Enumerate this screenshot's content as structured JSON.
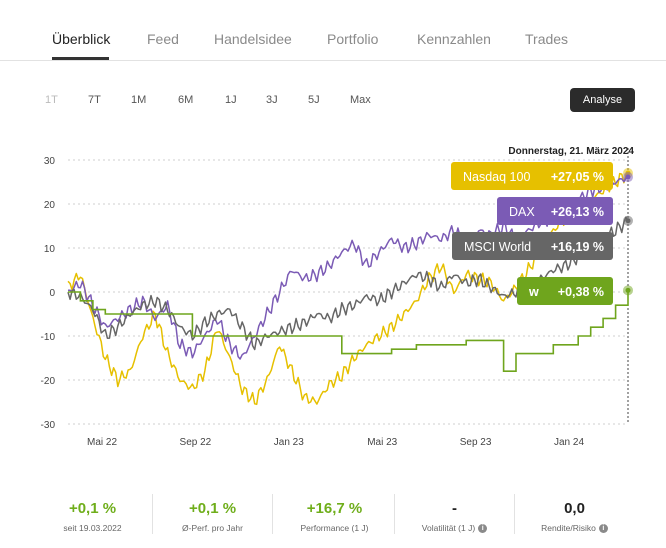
{
  "tabs": [
    "Überblick",
    "Feed",
    "Handelsidee",
    "Portfolio",
    "Kennzahlen",
    "Trades"
  ],
  "ranges": [
    "1T",
    "7T",
    "1M",
    "6M",
    "1J",
    "3J",
    "5J",
    "Max"
  ],
  "analyse_label": "Analyse",
  "date_label": "Donnerstag, 21. März 2024",
  "chart_data": {
    "type": "line",
    "ylim": [
      -30,
      30
    ],
    "yticks": [
      30,
      20,
      10,
      0,
      -10,
      -20,
      -30
    ],
    "xticks": [
      "Mai 22",
      "Sep 22",
      "Jan 23",
      "Mai 23",
      "Sep 23",
      "Jan 24"
    ],
    "grid": true,
    "series": [
      {
        "name": "Nasdaq 100",
        "value_label": "+27,05 %",
        "color": "#e6c000",
        "final": 27.05,
        "values": [
          1,
          4,
          -6,
          -15,
          -20,
          -18,
          -10,
          -5,
          -14,
          -20,
          -22,
          -18,
          -8,
          -15,
          -22,
          -25,
          -20,
          -12,
          -18,
          -24,
          -25,
          -21,
          -19,
          -15,
          -12,
          -10,
          -8,
          -5,
          -2,
          3,
          6,
          0,
          4,
          3,
          2,
          -2,
          1,
          5,
          10,
          14,
          17,
          19,
          21,
          23,
          25,
          27.05
        ]
      },
      {
        "name": "DAX",
        "value_label": "+26,13 %",
        "color": "#7b5bb5",
        "final": 26.13,
        "values": [
          0,
          2,
          -3,
          -8,
          -6,
          -4,
          -2,
          -6,
          -3,
          -12,
          -14,
          -10,
          -6,
          -12,
          -15,
          -10,
          -5,
          0,
          5,
          3,
          4,
          6,
          9,
          11,
          6,
          9,
          12,
          10,
          11,
          13,
          12,
          14,
          11,
          14,
          13,
          15,
          12,
          14,
          16,
          17,
          19,
          21,
          23,
          24,
          25,
          26.13
        ]
      },
      {
        "name": "MSCI World",
        "value_label": "+16,19 %",
        "color": "#666666",
        "final": 16.19,
        "values": [
          0,
          -1,
          -4,
          -10,
          -8,
          -5,
          -3,
          -2,
          -4,
          -8,
          -10,
          -7,
          -5,
          -4,
          -8,
          -12,
          -10,
          -9,
          -8,
          -7,
          -5,
          -6,
          -4,
          -3,
          -1,
          -2,
          0,
          2,
          4,
          3,
          1,
          4,
          2,
          3,
          1,
          -1,
          0,
          1,
          3,
          5,
          6,
          8,
          10,
          12,
          14,
          16.19
        ]
      },
      {
        "name": "w",
        "value_label": "+0,38 %",
        "color": "#6fa51d",
        "final": 0.38,
        "values": [
          0,
          -2,
          -4,
          -5,
          -5,
          -5,
          -5,
          -5,
          -5,
          -5,
          -10,
          -10,
          -10,
          -10,
          -10,
          -10,
          -10,
          -10,
          -10,
          -10,
          -10,
          -10,
          -14,
          -14,
          -14,
          -14,
          -13,
          -13,
          -12,
          -12,
          -12,
          -12,
          -11,
          -11,
          -11,
          -18,
          -14,
          -14,
          -14,
          -12,
          -12,
          -10,
          -8,
          -6,
          -3,
          0.38
        ]
      }
    ]
  },
  "stats": [
    {
      "value": "+0,1 %",
      "label": "seit 19.03.2022",
      "info": false
    },
    {
      "value": "+0,1 %",
      "label": "Ø-Perf. pro Jahr",
      "info": false
    },
    {
      "value": "+16,7 %",
      "label": "Performance (1 J)",
      "info": false
    },
    {
      "value": "-",
      "label": "Volatilität (1 J)",
      "info": true
    },
    {
      "value": "0,0",
      "label": "Rendite/Risiko",
      "info": true
    }
  ]
}
